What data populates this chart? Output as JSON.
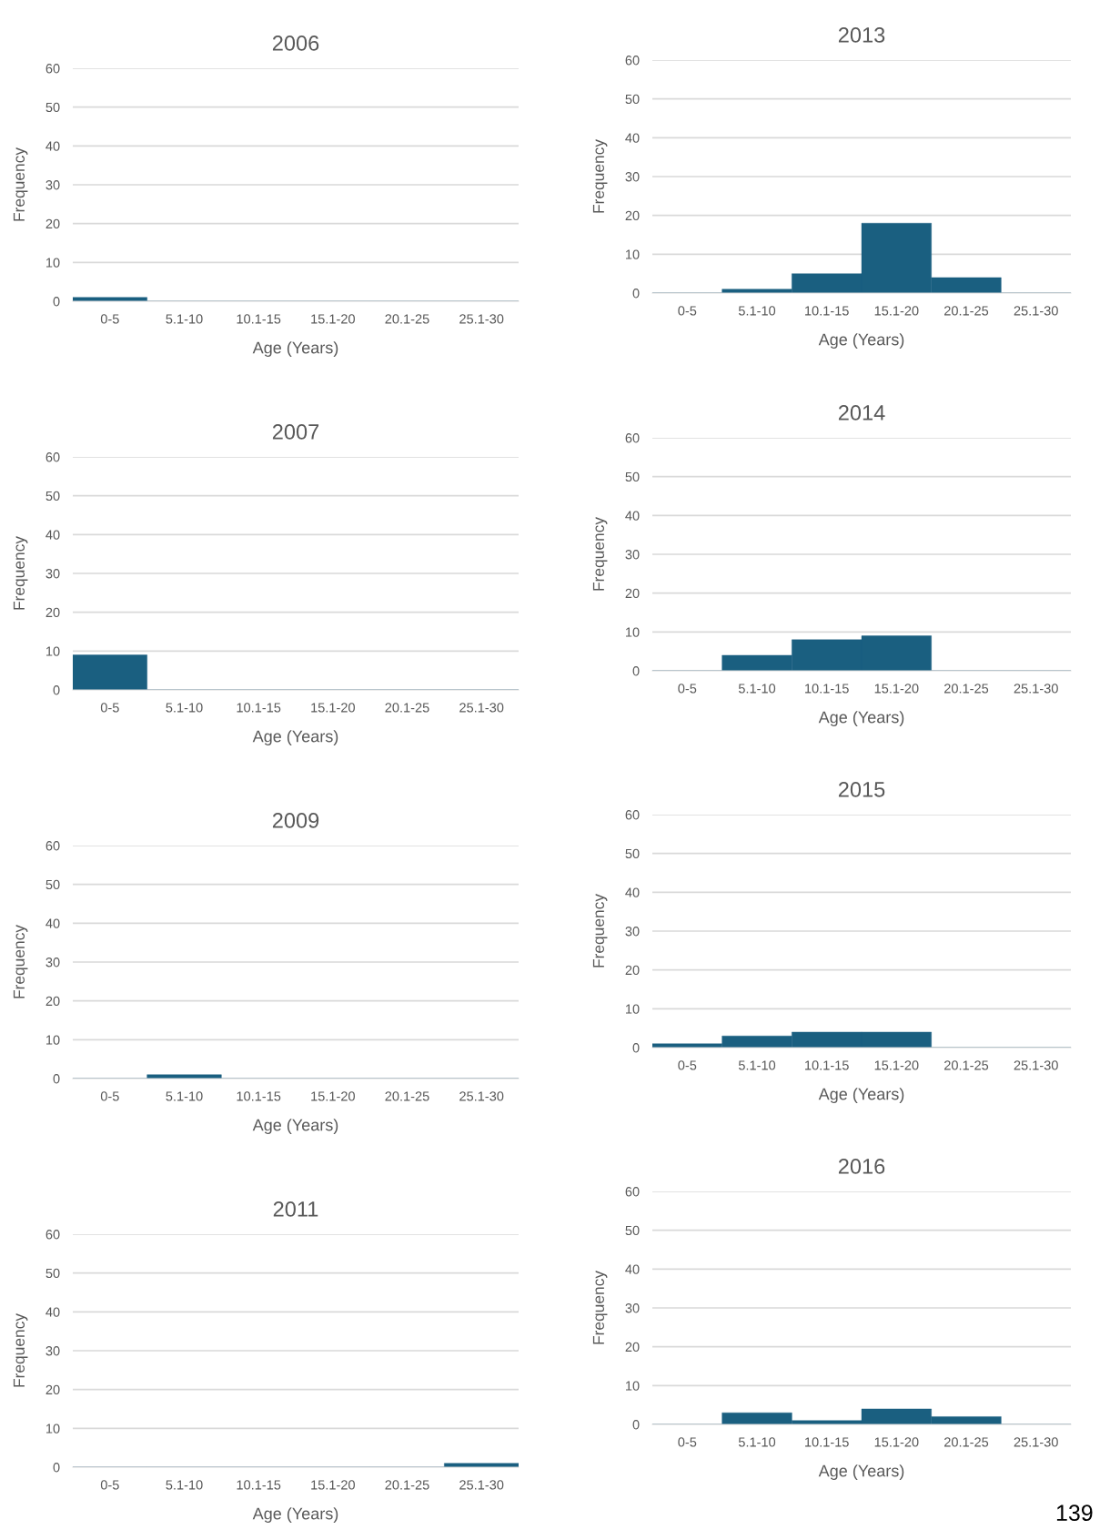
{
  "chart_data": [
    {
      "type": "bar",
      "title": "2006",
      "xlabel": "Age (Years)",
      "ylabel": "Frequency",
      "categories": [
        "0-5",
        "5.1-10",
        "10.1-15",
        "15.1-20",
        "20.1-25",
        "25.1-30"
      ],
      "values": [
        1,
        0,
        0,
        0,
        0,
        0
      ],
      "color": "#1a5f80",
      "ylim": [
        0,
        60
      ],
      "yticks": [
        0,
        10,
        20,
        30,
        40,
        50,
        60
      ],
      "grid": "y"
    },
    {
      "type": "bar",
      "title": "2007",
      "xlabel": "Age (Years)",
      "ylabel": "Frequency",
      "categories": [
        "0-5",
        "5.1-10",
        "10.1-15",
        "15.1-20",
        "20.1-25",
        "25.1-30"
      ],
      "values": [
        9,
        0,
        0,
        0,
        0,
        0
      ],
      "color": "#1a5f80",
      "ylim": [
        0,
        60
      ],
      "yticks": [
        0,
        10,
        20,
        30,
        40,
        50,
        60
      ],
      "grid": "y"
    },
    {
      "type": "bar",
      "title": "2009",
      "xlabel": "Age (Years)",
      "ylabel": "Frequency",
      "categories": [
        "0-5",
        "5.1-10",
        "10.1-15",
        "15.1-20",
        "20.1-25",
        "25.1-30"
      ],
      "values": [
        0,
        1,
        0,
        0,
        0,
        0
      ],
      "color": "#1a5f80",
      "ylim": [
        0,
        60
      ],
      "yticks": [
        0,
        10,
        20,
        30,
        40,
        50,
        60
      ],
      "grid": "y"
    },
    {
      "type": "bar",
      "title": "2011",
      "xlabel": "Age (Years)",
      "ylabel": "Frequency",
      "categories": [
        "0-5",
        "5.1-10",
        "10.1-15",
        "15.1-20",
        "20.1-25",
        "25.1-30"
      ],
      "values": [
        0,
        0,
        0,
        0,
        0,
        1
      ],
      "color": "#1a5f80",
      "ylim": [
        0,
        60
      ],
      "yticks": [
        0,
        10,
        20,
        30,
        40,
        50,
        60
      ],
      "grid": "y"
    },
    {
      "type": "bar",
      "title": "2013",
      "xlabel": "Age (Years)",
      "ylabel": "Frequency",
      "categories": [
        "0-5",
        "5.1-10",
        "10.1-15",
        "15.1-20",
        "20.1-25",
        "25.1-30"
      ],
      "values": [
        0,
        1,
        5,
        18,
        4,
        0
      ],
      "color": "#1a5f80",
      "ylim": [
        0,
        60
      ],
      "yticks": [
        0,
        10,
        20,
        30,
        40,
        50,
        60
      ],
      "grid": "y"
    },
    {
      "type": "bar",
      "title": "2014",
      "xlabel": "Age (Years)",
      "ylabel": "Frequency",
      "categories": [
        "0-5",
        "5.1-10",
        "10.1-15",
        "15.1-20",
        "20.1-25",
        "25.1-30"
      ],
      "values": [
        0,
        4,
        8,
        9,
        0,
        0
      ],
      "color": "#1a5f80",
      "ylim": [
        0,
        60
      ],
      "yticks": [
        0,
        10,
        20,
        30,
        40,
        50,
        60
      ],
      "grid": "y"
    },
    {
      "type": "bar",
      "title": "2015",
      "xlabel": "Age (Years)",
      "ylabel": "Frequency",
      "categories": [
        "0-5",
        "5.1-10",
        "10.1-15",
        "15.1-20",
        "20.1-25",
        "25.1-30"
      ],
      "values": [
        1,
        3,
        4,
        4,
        0,
        0
      ],
      "color": "#1a5f80",
      "ylim": [
        0,
        60
      ],
      "yticks": [
        0,
        10,
        20,
        30,
        40,
        50,
        60
      ],
      "grid": "y"
    },
    {
      "type": "bar",
      "title": "2016",
      "xlabel": "Age (Years)",
      "ylabel": "Frequency",
      "categories": [
        "0-5",
        "5.1-10",
        "10.1-15",
        "15.1-20",
        "20.1-25",
        "25.1-30"
      ],
      "values": [
        0,
        3,
        1,
        4,
        2,
        0
      ],
      "color": "#1a5f80",
      "ylim": [
        0,
        60
      ],
      "yticks": [
        0,
        10,
        20,
        30,
        40,
        50,
        60
      ],
      "grid": "y",
      "annotations": [
        "139"
      ]
    }
  ]
}
